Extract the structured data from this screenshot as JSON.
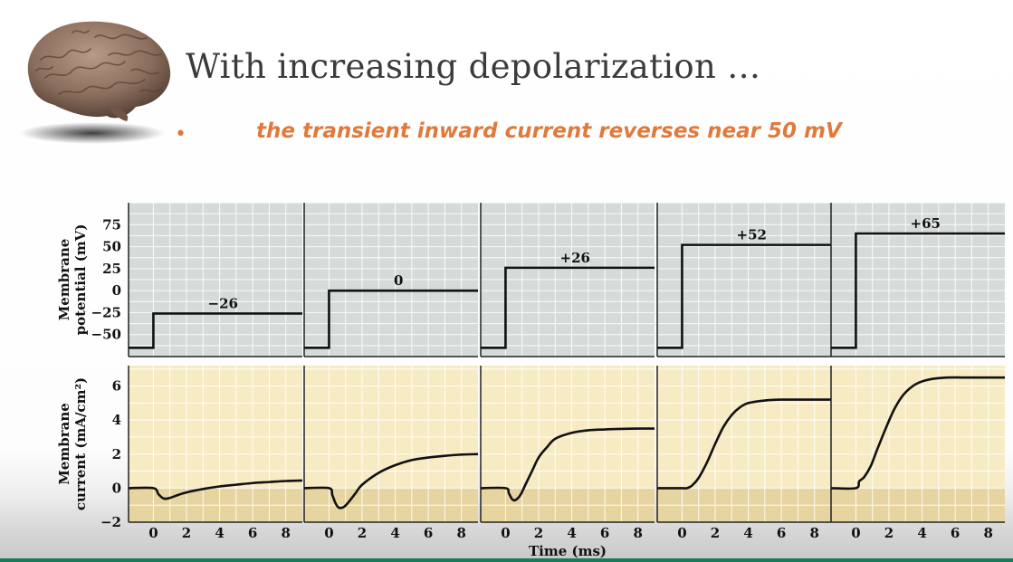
{
  "slide": {
    "title": "With increasing depolarization …",
    "bullet": "the transient inward current reverses near 50 mV"
  },
  "colors": {
    "bullet": "#e07a3c",
    "potential_bg": "#d5dbd9",
    "current_bg": "#f7ebc4",
    "current_below_zero": "#e6d5a0",
    "trace": "#111111"
  },
  "icons": {
    "brain": "brain-icon"
  },
  "chart_data": {
    "type": "line",
    "xlabel": "Time (ms)",
    "x_ticks": [
      0,
      2,
      4,
      6,
      8
    ],
    "xlim": [
      -1.5,
      9
    ],
    "potential": {
      "ylabel": [
        "Membrane",
        "potential (mV)"
      ],
      "ylim": [
        -75,
        100
      ],
      "y_ticks": [
        75,
        50,
        25,
        0,
        -25,
        -50
      ],
      "y_tick_labels": [
        "75",
        "50",
        "25",
        "0",
        "−25",
        "−50"
      ],
      "holding": -65,
      "steps": [
        {
          "label": "−26",
          "value": -26
        },
        {
          "label": "0",
          "value": 0
        },
        {
          "label": "+26",
          "value": 26
        },
        {
          "label": "+52",
          "value": 52
        },
        {
          "label": "+65",
          "value": 65
        }
      ]
    },
    "current": {
      "ylabel": [
        "Membrane",
        "current (mA/cm²)"
      ],
      "ylim": [
        -2,
        7.2
      ],
      "y_ticks": [
        6,
        4,
        2,
        0,
        -2
      ],
      "y_tick_labels": [
        "6",
        "4",
        "2",
        "0",
        "−2"
      ],
      "series": [
        {
          "x": [
            -1.5,
            0,
            0.3,
            0.6,
            0.9,
            1.5,
            2,
            3,
            4,
            5,
            6,
            7,
            8,
            9
          ],
          "y": [
            0,
            0,
            -0.35,
            -0.6,
            -0.6,
            -0.4,
            -0.25,
            -0.05,
            0.1,
            0.2,
            0.3,
            0.36,
            0.42,
            0.45
          ]
        },
        {
          "x": [
            -1.5,
            0,
            0.2,
            0.4,
            0.6,
            0.9,
            1.2,
            1.6,
            2,
            3,
            4,
            5,
            6,
            7,
            8,
            9
          ],
          "y": [
            0,
            0,
            -0.4,
            -0.9,
            -1.15,
            -1.1,
            -0.8,
            -0.3,
            0.2,
            0.9,
            1.35,
            1.65,
            1.8,
            1.9,
            1.97,
            2.0
          ]
        },
        {
          "x": [
            -1.5,
            0,
            0.2,
            0.4,
            0.6,
            0.9,
            1.2,
            1.6,
            2,
            2.5,
            3,
            4,
            5,
            6,
            7,
            8,
            9
          ],
          "y": [
            0,
            0,
            -0.3,
            -0.65,
            -0.7,
            -0.4,
            0.2,
            1.0,
            1.8,
            2.4,
            2.9,
            3.25,
            3.4,
            3.45,
            3.48,
            3.5,
            3.5
          ]
        },
        {
          "x": [
            -1.5,
            0,
            0.3,
            0.6,
            1,
            1.5,
            2,
            2.5,
            3,
            3.5,
            4,
            5,
            6,
            7,
            8,
            9
          ],
          "y": [
            0,
            0,
            0,
            0.15,
            0.6,
            1.5,
            2.6,
            3.6,
            4.3,
            4.75,
            5.0,
            5.15,
            5.2,
            5.2,
            5.2,
            5.2
          ]
        },
        {
          "x": [
            -1.5,
            0,
            0.2,
            0.5,
            0.9,
            1.3,
            1.8,
            2.3,
            2.8,
            3.3,
            3.8,
            4.5,
            5.5,
            6.5,
            7.5,
            9
          ],
          "y": [
            0,
            0,
            0.4,
            0.65,
            1.3,
            2.3,
            3.5,
            4.6,
            5.4,
            5.9,
            6.2,
            6.4,
            6.5,
            6.5,
            6.5,
            6.5
          ]
        }
      ]
    }
  }
}
